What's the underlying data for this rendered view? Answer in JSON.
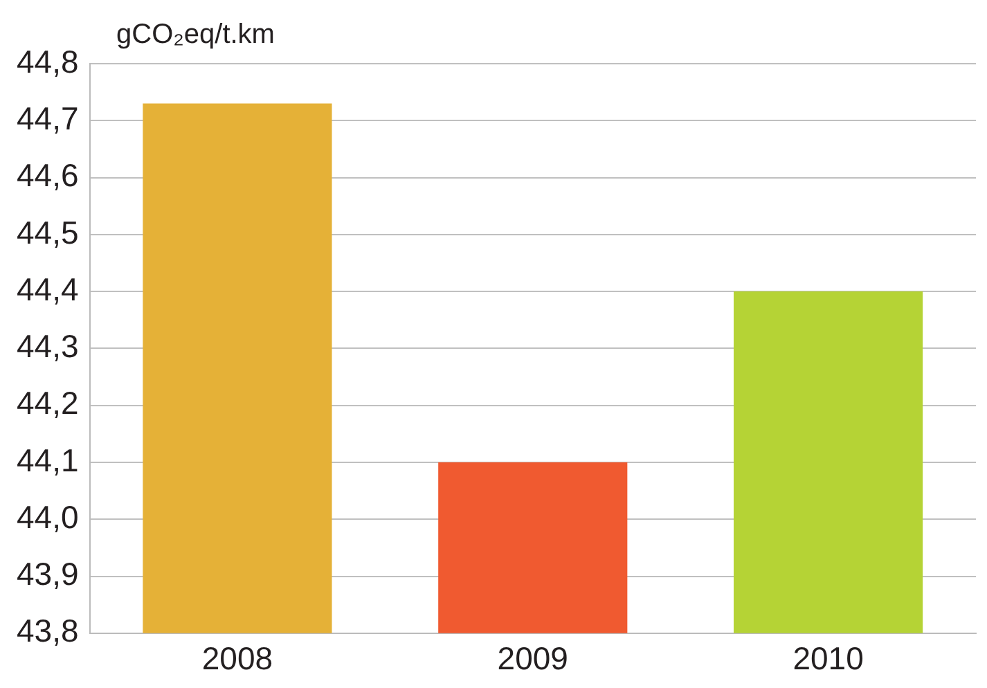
{
  "chart_data": {
    "type": "bar",
    "ylabel": "gCO₂eq/t.km",
    "categories": [
      "2008",
      "2009",
      "2010"
    ],
    "series": [
      {
        "colors": [
          "#e5b137",
          "#f05a30",
          "#b5d335"
        ],
        "values": [
          44.73,
          44.1,
          44.4
        ]
      }
    ],
    "ylim": [
      43.8,
      44.8
    ],
    "yticks": [
      {
        "value": 43.8,
        "label": "43,8"
      },
      {
        "value": 43.9,
        "label": "43,9"
      },
      {
        "value": 44.0,
        "label": "44,0"
      },
      {
        "value": 44.1,
        "label": "44,1"
      },
      {
        "value": 44.2,
        "label": "44,2"
      },
      {
        "value": 44.3,
        "label": "44,3"
      },
      {
        "value": 44.4,
        "label": "44,4"
      },
      {
        "value": 44.5,
        "label": "44,5"
      },
      {
        "value": 44.6,
        "label": "44,6"
      },
      {
        "value": 44.7,
        "label": "44,7"
      },
      {
        "value": 44.8,
        "label": "44,8"
      }
    ],
    "grid": "y",
    "legend": false
  }
}
